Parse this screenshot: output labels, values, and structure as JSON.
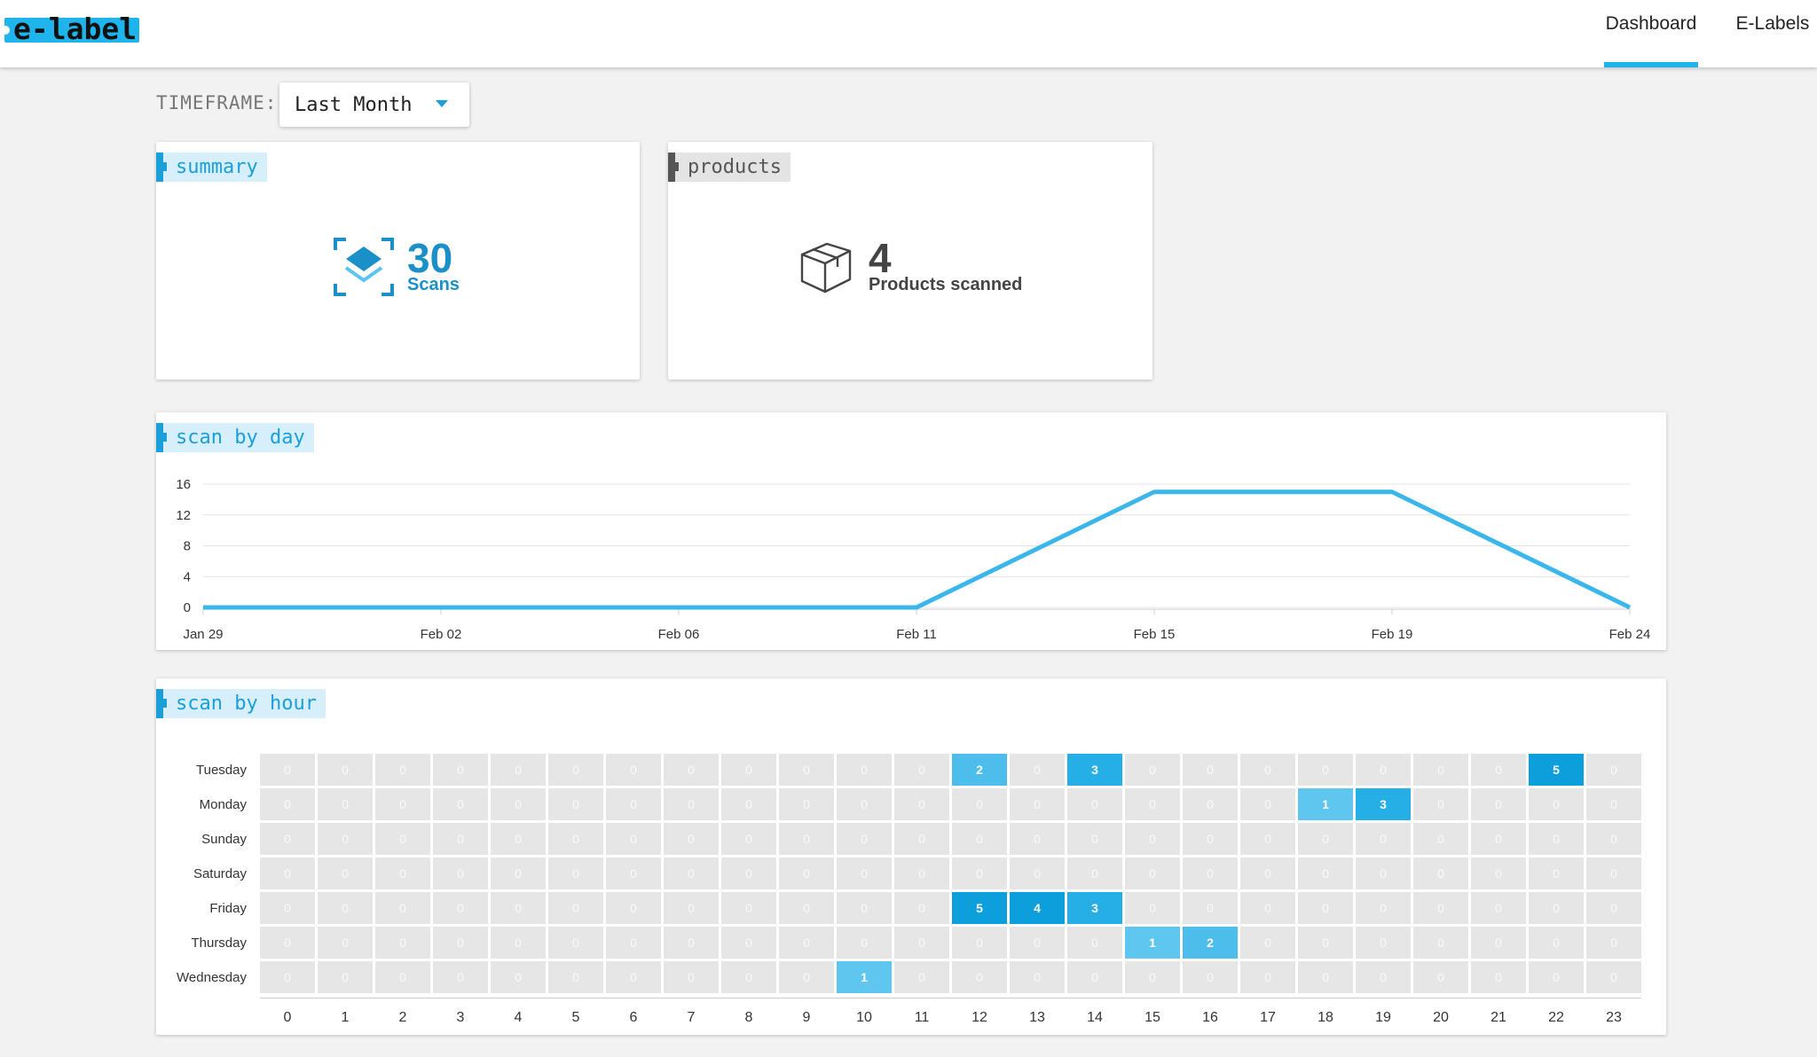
{
  "brand": {
    "logo_text": "e-label"
  },
  "nav": {
    "tabs": [
      {
        "label": "Dashboard",
        "active": true
      },
      {
        "label": "E-Labels",
        "active": false
      }
    ]
  },
  "timeframe": {
    "label": "TIMEFRAME:",
    "selected": "Last Month"
  },
  "summary": {
    "tag": "summary",
    "count": "30",
    "count_label": "Scans",
    "icon": "scan-layers-icon"
  },
  "products": {
    "tag": "products",
    "count": "4",
    "count_label": "Products scanned",
    "icon": "box-icon"
  },
  "scan_by_day": {
    "tag": "scan by day"
  },
  "scan_by_hour": {
    "tag": "scan by hour"
  },
  "colors": {
    "accent": "#1fb5ec",
    "accent_dark": "#1a9fd8",
    "cell_empty": "#e6e6e6"
  },
  "chart_data": [
    {
      "type": "line",
      "x": [
        "Jan 29",
        "Feb 02",
        "Feb 06",
        "Feb 11",
        "Feb 15",
        "Feb 19",
        "Feb 24"
      ],
      "values": [
        0,
        0,
        0,
        0,
        15,
        15,
        0
      ],
      "yticks": [
        0,
        4,
        8,
        12,
        16
      ],
      "ylim": [
        0,
        16
      ],
      "grid": true,
      "color": "#3bb6ea"
    },
    {
      "type": "heatmap",
      "rows": [
        "Tuesday",
        "Monday",
        "Sunday",
        "Saturday",
        "Friday",
        "Thursday",
        "Wednesday"
      ],
      "columns": [
        "0",
        "1",
        "2",
        "3",
        "4",
        "5",
        "6",
        "7",
        "8",
        "9",
        "10",
        "11",
        "12",
        "13",
        "14",
        "15",
        "16",
        "17",
        "18",
        "19",
        "20",
        "21",
        "22",
        "23"
      ],
      "values": [
        [
          0,
          0,
          0,
          0,
          0,
          0,
          0,
          0,
          0,
          0,
          0,
          0,
          2,
          0,
          3,
          0,
          0,
          0,
          0,
          0,
          0,
          0,
          5,
          0
        ],
        [
          0,
          0,
          0,
          0,
          0,
          0,
          0,
          0,
          0,
          0,
          0,
          0,
          0,
          0,
          0,
          0,
          0,
          0,
          1,
          3,
          0,
          0,
          0,
          0
        ],
        [
          0,
          0,
          0,
          0,
          0,
          0,
          0,
          0,
          0,
          0,
          0,
          0,
          0,
          0,
          0,
          0,
          0,
          0,
          0,
          0,
          0,
          0,
          0,
          0
        ],
        [
          0,
          0,
          0,
          0,
          0,
          0,
          0,
          0,
          0,
          0,
          0,
          0,
          0,
          0,
          0,
          0,
          0,
          0,
          0,
          0,
          0,
          0,
          0,
          0
        ],
        [
          0,
          0,
          0,
          0,
          0,
          0,
          0,
          0,
          0,
          0,
          0,
          0,
          5,
          4,
          3,
          0,
          0,
          0,
          0,
          0,
          0,
          0,
          0,
          0
        ],
        [
          0,
          0,
          0,
          0,
          0,
          0,
          0,
          0,
          0,
          0,
          0,
          0,
          0,
          0,
          0,
          1,
          2,
          0,
          0,
          0,
          0,
          0,
          0,
          0
        ],
        [
          0,
          0,
          0,
          0,
          0,
          0,
          0,
          0,
          0,
          0,
          1,
          0,
          0,
          0,
          0,
          0,
          0,
          0,
          0,
          0,
          0,
          0,
          0,
          0
        ]
      ]
    }
  ]
}
